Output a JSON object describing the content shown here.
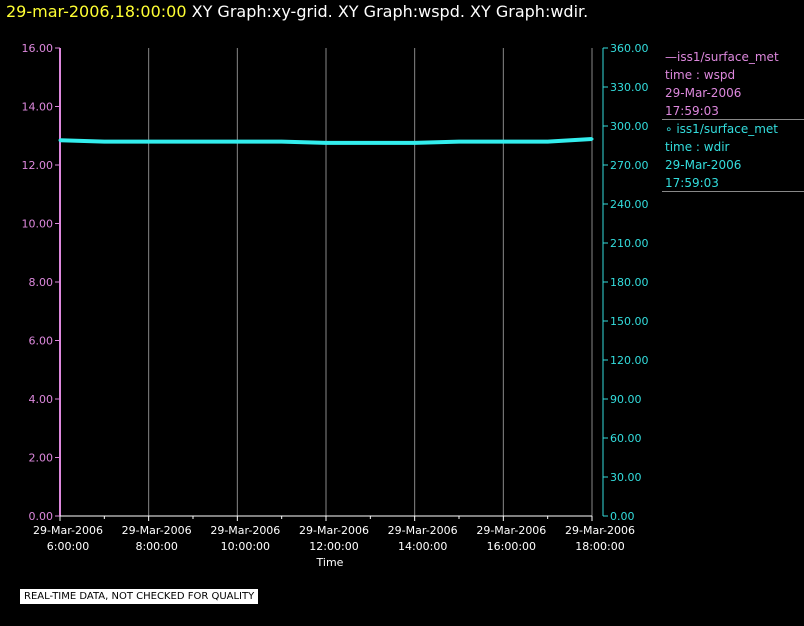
{
  "header": {
    "datetime": "29-mar-2006,18:00:00",
    "graphs": [
      "XY Graph:xy-grid.",
      "XY Graph:wspd.",
      "XY Graph:wdir."
    ]
  },
  "colors": {
    "left_axis": "#dd88dd",
    "right_axis": "#33dddd",
    "grid": "#888888",
    "series": "#33eeee"
  },
  "legend": [
    {
      "symbol": "—",
      "source": "iss1/surface_met",
      "var": "time : wspd",
      "date": "29-Mar-2006",
      "time": "17:59:03"
    },
    {
      "symbol": "∘",
      "source": "iss1/surface_met",
      "var": "time : wdir",
      "date": "29-Mar-2006",
      "time": "17:59:03"
    }
  ],
  "notice": "REAL-TIME DATA, NOT CHECKED FOR QUALITY",
  "chart_data": {
    "type": "line",
    "xlabel": "Time",
    "x_ticks": [
      {
        "date": "29-Mar-2006",
        "time": "6:00:00"
      },
      {
        "date": "29-Mar-2006",
        "time": "8:00:00"
      },
      {
        "date": "29-Mar-2006",
        "time": "10:00:00"
      },
      {
        "date": "29-Mar-2006",
        "time": "12:00:00"
      },
      {
        "date": "29-Mar-2006",
        "time": "14:00:00"
      },
      {
        "date": "29-Mar-2006",
        "time": "16:00:00"
      },
      {
        "date": "29-Mar-2006",
        "time": "18:00:00"
      }
    ],
    "xlim": [
      "2006-03-29 06:00",
      "2006-03-29 18:00"
    ],
    "ylim_left": [
      0,
      16
    ],
    "yticks_left": [
      "0.00",
      "2.00",
      "4.00",
      "6.00",
      "8.00",
      "10.00",
      "12.00",
      "14.00",
      "16.00"
    ],
    "ylim_right": [
      0,
      360
    ],
    "yticks_right": [
      "0.00",
      "30.00",
      "60.00",
      "90.00",
      "120.00",
      "150.00",
      "180.00",
      "210.00",
      "240.00",
      "270.00",
      "300.00",
      "330.00",
      "360.00"
    ],
    "grid": "vertical",
    "series": [
      {
        "name": "iss1/surface_met time : wdir",
        "axis": "right",
        "x": [
          "2006-03-29 06:00",
          "2006-03-29 07:00",
          "2006-03-29 08:00",
          "2006-03-29 09:00",
          "2006-03-29 10:00",
          "2006-03-29 11:00",
          "2006-03-29 12:00",
          "2006-03-29 13:00",
          "2006-03-29 14:00",
          "2006-03-29 15:00",
          "2006-03-29 16:00",
          "2006-03-29 17:00",
          "2006-03-29 18:00"
        ],
        "y": [
          289,
          288,
          288,
          288,
          288,
          288,
          287,
          287,
          287,
          288,
          288,
          288,
          290
        ]
      }
    ]
  }
}
